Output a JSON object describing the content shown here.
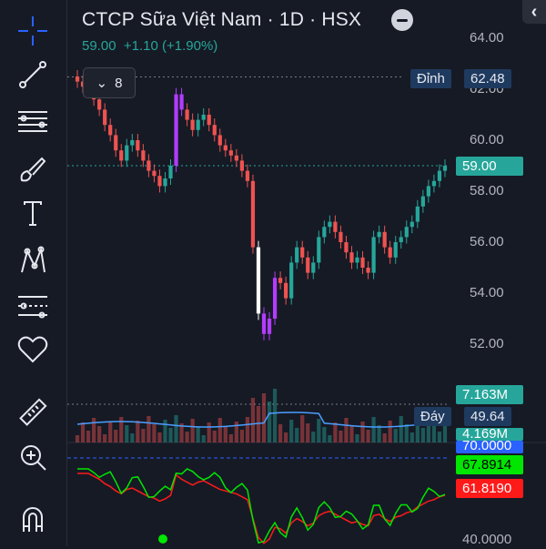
{
  "header": {
    "title": "CTCP Sữa Việt Nam · 1D · HSX",
    "price": "59.00",
    "change": "+1.10 (+1.90%)",
    "indicator_count": "8"
  },
  "price_axis": [
    "64.00",
    "62.00",
    "60.00",
    "58.00",
    "56.00",
    "54.00",
    "52.00"
  ],
  "labels": {
    "peak_title": "Đỉnh",
    "peak_value": "62.48",
    "current_price": "59.00",
    "volume_top": "7.163M",
    "trough_title": "Đáy",
    "trough_value": "49.64",
    "volume_avg": "4.169M",
    "rsi_upper": "70.0000",
    "rsi_value": "67.8914",
    "rsi_signal": "61.8190",
    "rsi_bottom": "40.0000"
  },
  "colors": {
    "up": "#26a69a",
    "down": "#ef5350",
    "accent": "#2962ff",
    "rsi": "#00e600",
    "signal": "#ff1a1a",
    "purple": "#b23cff"
  },
  "toolbar": {
    "tools": [
      "crosshair-icon",
      "trend-line-icon",
      "fib-levels-icon",
      "brush-icon",
      "text-icon",
      "pattern-icon",
      "forecast-icon",
      "favorites-heart-icon",
      "ruler-icon",
      "zoom-in-icon",
      "magnet-icon"
    ]
  }
}
